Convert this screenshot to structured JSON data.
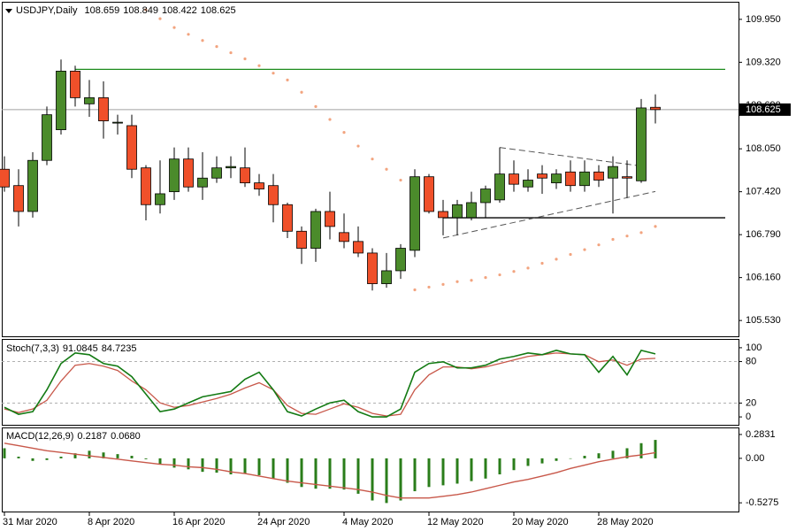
{
  "chart_data": [
    {
      "type": "candlestick",
      "title": "USDJPY,Daily",
      "categories": [
        "31 Mar 2020",
        null,
        null,
        null,
        null,
        null,
        "8 Apr 2020",
        null,
        null,
        null,
        null,
        null,
        "16 Apr 2020",
        null,
        null,
        null,
        null,
        null,
        "24 Apr 2020",
        null,
        null,
        null,
        null,
        null,
        "4 May 2020",
        null,
        null,
        null,
        null,
        null,
        "12 May 2020",
        null,
        null,
        null,
        null,
        null,
        "20 May 2020",
        null,
        null,
        null,
        null,
        null,
        "28 May 2020",
        null,
        null,
        null,
        null
      ],
      "open": [
        107.75,
        107.51,
        107.13,
        107.88,
        108.33,
        109.19,
        108.71,
        108.8,
        108.43,
        108.39,
        107.77,
        107.23,
        107.42,
        107.9,
        107.49,
        107.62,
        107.77,
        107.77,
        107.55,
        107.51,
        107.23,
        106.84,
        106.59,
        107.13,
        106.82,
        106.69,
        106.52,
        106.07,
        106.26,
        106.56,
        107.64,
        107.13,
        107.04,
        107.04,
        107.26,
        107.3,
        107.68,
        107.49,
        107.68,
        107.55,
        107.71,
        107.51,
        107.71,
        107.62,
        107.64,
        107.58,
        108.659
      ],
      "high": [
        107.94,
        107.75,
        108.0,
        108.67,
        109.36,
        109.27,
        109.06,
        109.04,
        108.55,
        108.55,
        107.81,
        107.88,
        108.07,
        108.07,
        108.0,
        107.94,
        107.94,
        108.07,
        107.68,
        107.68,
        107.26,
        106.91,
        107.17,
        107.42,
        107.1,
        106.91,
        106.59,
        106.52,
        106.65,
        107.75,
        107.68,
        107.3,
        107.3,
        107.42,
        107.51,
        108.07,
        107.88,
        107.75,
        107.81,
        107.75,
        107.88,
        107.88,
        107.81,
        107.94,
        107.88,
        108.78,
        108.849
      ],
      "low": [
        107.42,
        106.91,
        107.04,
        107.81,
        108.26,
        108.67,
        108.52,
        108.2,
        108.26,
        107.62,
        107.0,
        107.1,
        107.3,
        107.42,
        107.3,
        107.55,
        107.62,
        107.49,
        107.36,
        106.97,
        106.74,
        106.36,
        106.39,
        106.72,
        106.59,
        106.46,
        105.97,
        106.01,
        106.14,
        106.46,
        107.1,
        106.78,
        106.78,
        107.0,
        107.04,
        107.26,
        107.42,
        107.42,
        107.39,
        107.46,
        107.42,
        107.42,
        107.49,
        107.1,
        107.33,
        107.55,
        108.422
      ],
      "close": [
        107.49,
        107.13,
        107.88,
        108.55,
        109.19,
        108.8,
        108.8,
        108.46,
        108.44,
        107.75,
        107.23,
        107.39,
        107.9,
        107.49,
        107.62,
        107.77,
        107.79,
        107.55,
        107.46,
        107.23,
        106.84,
        106.59,
        107.13,
        106.91,
        106.69,
        106.52,
        106.07,
        106.26,
        106.59,
        107.64,
        107.13,
        107.04,
        107.23,
        107.26,
        107.46,
        107.68,
        107.53,
        107.59,
        107.62,
        107.68,
        107.51,
        107.71,
        107.59,
        107.79,
        107.62,
        108.65,
        108.625
      ],
      "up_color": "#4b8b2b",
      "down_color": "#f0502a",
      "sar": {
        "color": "#f2a47f",
        "values": [
          null,
          null,
          null,
          null,
          null,
          null,
          null,
          null,
          null,
          null,
          110.09,
          109.96,
          109.83,
          109.73,
          109.64,
          109.55,
          109.46,
          109.37,
          109.27,
          109.16,
          109.06,
          108.88,
          108.67,
          108.48,
          108.29,
          108.09,
          107.9,
          107.75,
          107.59,
          105.98,
          106.02,
          106.06,
          106.1,
          106.12,
          106.16,
          106.2,
          106.25,
          106.3,
          106.37,
          106.43,
          106.5,
          106.57,
          106.64,
          106.72,
          106.77,
          106.82,
          106.91
        ]
      },
      "hlines": [
        {
          "from": 5,
          "price": 109.216,
          "color": "#1e8c1e"
        },
        {
          "from": 31,
          "price": 107.038,
          "color": "#000000"
        }
      ],
      "trendlines": [
        {
          "from": [
            35,
            108.069
          ],
          "to": [
            45,
            107.798
          ]
        },
        {
          "from": [
            31,
            106.741
          ],
          "to": [
            46,
            107.424
          ]
        }
      ],
      "ylim": [
        105.298,
        110.195
      ],
      "yticks": [
        {
          "value": 109.95,
          "label": "109.950"
        },
        {
          "value": 109.32,
          "label": "109.320"
        },
        {
          "value": 108.69,
          "label": "108.690"
        },
        {
          "value": 108.05,
          "label": "108.050"
        },
        {
          "value": 107.42,
          "label": "107.420"
        },
        {
          "value": 106.79,
          "label": "106.790"
        },
        {
          "value": 106.16,
          "label": "106.160"
        },
        {
          "value": 105.53,
          "label": "105.530"
        }
      ]
    },
    {
      "type": "line",
      "title": "Stoch(7,3,3)",
      "series": [
        {
          "color": "#137a13",
          "values": [
            13.9,
            3.8,
            7.6,
            39.2,
            77.2,
            92.4,
            89.9,
            77.2,
            73.4,
            58.2,
            32.9,
            7.6,
            11.4,
            20.3,
            29.1,
            32.9,
            36.7,
            54.4,
            64.6,
            39.2,
            7.6,
            1.3,
            11.4,
            20.3,
            24.1,
            7.6,
            0,
            0,
            11.4,
            64.6,
            77.2,
            79.7,
            70.9,
            70.9,
            74.7,
            83.6,
            87.4,
            92.4,
            89.9,
            96.2,
            91.1,
            89.9,
            64.6,
            87.4,
            60.8,
            96.2,
            91.0845
          ]
        },
        {
          "color": "#c8584a",
          "values": [
            11.4,
            6.3,
            11.4,
            24.1,
            51.9,
            74.7,
            77.2,
            73.4,
            67.1,
            51.9,
            39.2,
            20.3,
            13.9,
            16.5,
            21.5,
            26.6,
            32.9,
            41.8,
            49.4,
            39.2,
            16.5,
            5.1,
            3.8,
            11.4,
            19.0,
            13.9,
            5.1,
            1.3,
            3.8,
            39.2,
            60.8,
            72.2,
            72.2,
            69.6,
            72.2,
            77.2,
            82.3,
            87.4,
            89.9,
            92.4,
            91.1,
            89.9,
            79.7,
            82.3,
            74.7,
            83.6,
            84.7235
          ]
        }
      ],
      "levels": [
        20,
        80
      ],
      "ylim": [
        -11.4,
        111.4
      ],
      "yticks": [
        0,
        20,
        80,
        100
      ]
    },
    {
      "type": "bar",
      "title": "MACD(12,26,9)",
      "series": [
        {
          "color": "#2a7d1a",
          "values": [
            0.12,
            0.02,
            -0.03,
            -0.02,
            0.02,
            0.06,
            0.09,
            0.07,
            0.05,
            0.03,
            -0.01,
            -0.07,
            -0.11,
            -0.13,
            -0.16,
            -0.17,
            -0.19,
            -0.18,
            -0.2,
            -0.24,
            -0.29,
            -0.34,
            -0.36,
            -0.36,
            -0.37,
            -0.42,
            -0.5,
            -0.53,
            -0.5,
            -0.39,
            -0.34,
            -0.32,
            -0.3,
            -0.27,
            -0.24,
            -0.19,
            -0.14,
            -0.09,
            -0.06,
            -0.03,
            0,
            0.03,
            0.06,
            0.09,
            0.12,
            0.18,
            0.2187
          ]
        },
        {
          "type": "line",
          "color": "#c8584a",
          "values": [
            0.18,
            0.15,
            0.12,
            0.09,
            0.07,
            0.05,
            0.03,
            0.01,
            -0.01,
            -0.03,
            -0.05,
            -0.07,
            -0.08,
            -0.1,
            -0.11,
            -0.13,
            -0.16,
            -0.18,
            -0.21,
            -0.24,
            -0.27,
            -0.29,
            -0.31,
            -0.33,
            -0.35,
            -0.37,
            -0.4,
            -0.44,
            -0.47,
            -0.47,
            -0.47,
            -0.45,
            -0.43,
            -0.4,
            -0.36,
            -0.32,
            -0.28,
            -0.25,
            -0.21,
            -0.17,
            -0.12,
            -0.08,
            -0.04,
            -0.01,
            0.02,
            0.04,
            0.068
          ],
          "value_labels": [
            null,
            null,
            null,
            null,
            null,
            null,
            null,
            null,
            null,
            null,
            null,
            null,
            null,
            null,
            null,
            null,
            null,
            null,
            null,
            null,
            null,
            null,
            null,
            null,
            null,
            null,
            null,
            null,
            null,
            null,
            null,
            null,
            null,
            null,
            null,
            null,
            null,
            null,
            null,
            null,
            null,
            null,
            null,
            null,
            null,
            null,
            "0.0680"
          ]
        }
      ],
      "ylim": [
        -0.631,
        0.356
      ],
      "yticks": [
        0.2831,
        {
          "value": 0,
          "label": "0.00"
        },
        -0.5275
      ]
    }
  ]
}
